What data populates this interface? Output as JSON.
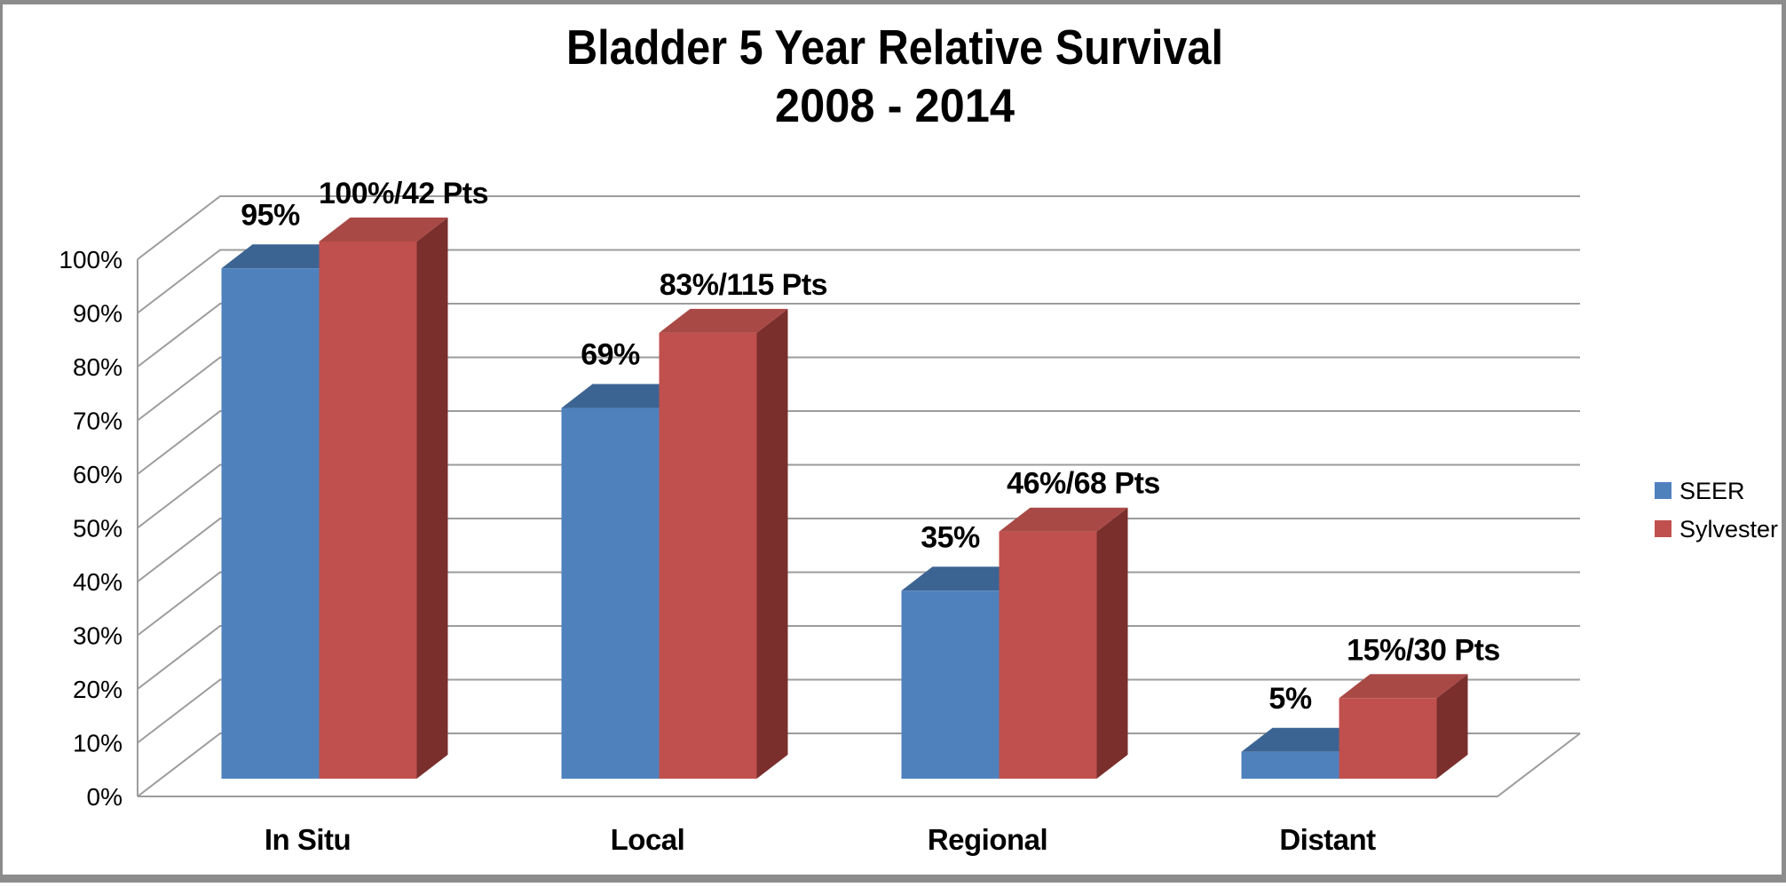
{
  "chart_data": {
    "type": "bar",
    "projection": "3d-clustered",
    "title": "Bladder 5 Year Relative Survival",
    "subtitle": "2008 - 2014",
    "categories": [
      "In Situ",
      "Local",
      "Regional",
      "Distant"
    ],
    "series": [
      {
        "name": "SEER",
        "color": "#4F81BD",
        "color_top": "#3C6492",
        "color_side": "#2E4D72",
        "values": [
          95,
          69,
          35,
          5
        ],
        "labels": [
          "95%",
          "69%",
          "35%",
          "5%"
        ]
      },
      {
        "name": "Sylvester",
        "color": "#C0504D",
        "color_top": "#A94946",
        "color_side": "#7A2F2D",
        "values": [
          100,
          83,
          46,
          15
        ],
        "labels": [
          "100%/42 Pts",
          "83%/115 Pts",
          "46%/68 Pts",
          "15%/30 Pts"
        ]
      }
    ],
    "ylim": [
      0,
      100
    ],
    "ytick_step": 10,
    "ytick_labels": [
      "0%",
      "10%",
      "20%",
      "30%",
      "40%",
      "50%",
      "60%",
      "70%",
      "80%",
      "90%",
      "100%"
    ],
    "grid": true,
    "gridline_color": "#9C9C9C",
    "axis_color": "#9C9C9C",
    "legend_position": "right",
    "frame_color": "#8C8C8C",
    "background": "#FFFFFF",
    "text_color": "#000000"
  }
}
